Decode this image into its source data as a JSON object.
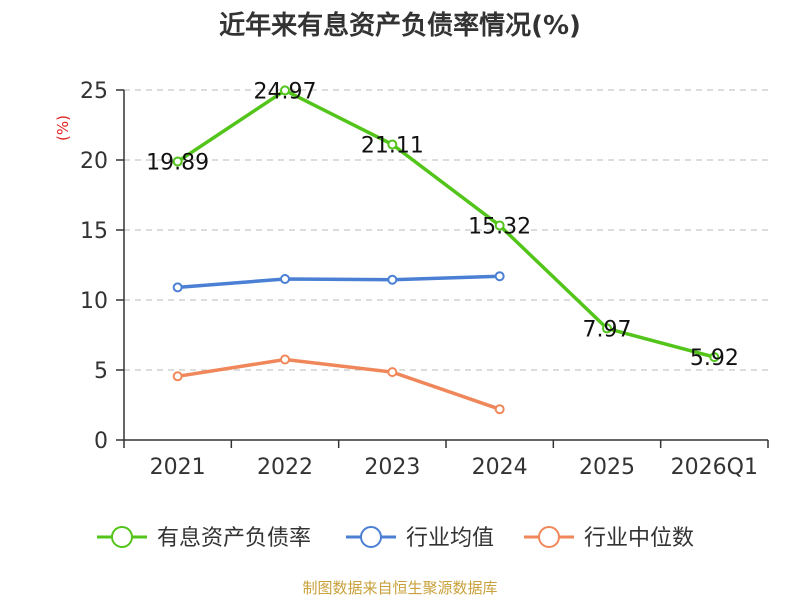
{
  "chart_data": {
    "type": "line",
    "title": "近年来有息资产负债率情况(%)",
    "ylabel": "(%)",
    "xlabel": "",
    "categories": [
      "2021",
      "2022",
      "2023",
      "2024",
      "2025",
      "2026Q1"
    ],
    "yticks": [
      0,
      5,
      10,
      15,
      20,
      25
    ],
    "ylim": [
      0,
      25
    ],
    "grid": true,
    "legend_position": "bottom",
    "series": [
      {
        "name": "有息资产负债率",
        "color": "#52c41a",
        "values": [
          19.89,
          24.97,
          21.11,
          15.32,
          7.97,
          5.92
        ],
        "labels": [
          "19.89",
          "24.97",
          "21.11",
          "15.32",
          "7.97",
          "5.92"
        ]
      },
      {
        "name": "行业均值",
        "color": "#4a7fd4",
        "values": [
          10.9,
          11.5,
          11.45,
          11.7,
          null,
          null
        ]
      },
      {
        "name": "行业中位数",
        "color": "#f0875a",
        "values": [
          4.55,
          5.75,
          4.85,
          2.2,
          null,
          null
        ]
      }
    ],
    "ylabel_color": "#e02020"
  },
  "footer": {
    "source": "制图数据来自恒生聚源数据库",
    "source_color": "#c9a13b"
  }
}
